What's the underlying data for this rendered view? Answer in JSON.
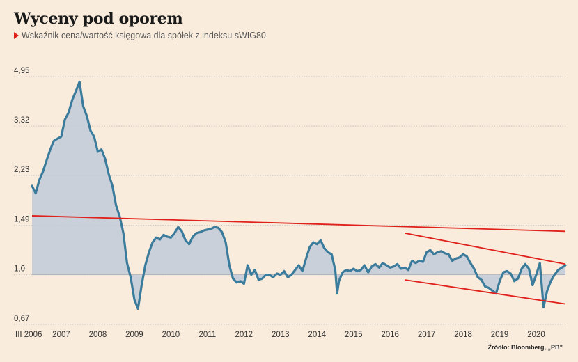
{
  "title": "Wyceny pod oporem",
  "subtitle": "Wskaźnik cena/wartość księgowa dla spółek z indeksu sWIG80",
  "source": "Źródło: Bloomberg, „PB”",
  "colors": {
    "line": "#3b7b9b",
    "area": "#c2cbd8",
    "trend": "#e0201b",
    "marker": "#e0201b",
    "grid": "#b5b5b5",
    "background": "#f9ecdc"
  },
  "chart_data": {
    "type": "line",
    "title": "Wyceny pod oporem",
    "subtitle": "Wskaźnik cena/wartość księgowa dla spółek z indeksu sWIG80",
    "y_scale": "log",
    "y_ticks": [
      "4,95",
      "3,32",
      "2,23",
      "1,49",
      "1,0",
      "0,67"
    ],
    "y_tick_values": [
      4.95,
      3.32,
      2.23,
      1.49,
      1.0,
      0.67
    ],
    "ylim": [
      0.67,
      4.95
    ],
    "xlim": [
      2006.2,
      2020.8
    ],
    "x_ticks": [
      {
        "label": "III 2006",
        "x": 2006.17
      },
      {
        "label": "2007",
        "x": 2007.0
      },
      {
        "label": "2008",
        "x": 2008.0
      },
      {
        "label": "2009",
        "x": 2009.0
      },
      {
        "label": "2010",
        "x": 2010.0
      },
      {
        "label": "2011",
        "x": 2011.0
      },
      {
        "label": "2012",
        "x": 2012.0
      },
      {
        "label": "2013",
        "x": 2013.0
      },
      {
        "label": "2014",
        "x": 2014.0
      },
      {
        "label": "2015",
        "x": 2015.0
      },
      {
        "label": "2016",
        "x": 2016.0
      },
      {
        "label": "2017",
        "x": 2017.0
      },
      {
        "label": "2018",
        "x": 2018.0
      },
      {
        "label": "2019",
        "x": 2019.0
      },
      {
        "label": "2020",
        "x": 2020.0
      }
    ],
    "baseline": 1.0,
    "grid": true,
    "series": [
      {
        "points": [
          [
            2006.2,
            2.05
          ],
          [
            2006.3,
            1.93
          ],
          [
            2006.4,
            2.15
          ],
          [
            2006.5,
            2.3
          ],
          [
            2006.6,
            2.52
          ],
          [
            2006.7,
            2.75
          ],
          [
            2006.8,
            2.95
          ],
          [
            2006.9,
            3.0
          ],
          [
            2007.0,
            3.05
          ],
          [
            2007.1,
            3.5
          ],
          [
            2007.2,
            3.7
          ],
          [
            2007.3,
            4.1
          ],
          [
            2007.4,
            4.4
          ],
          [
            2007.5,
            4.75
          ],
          [
            2007.55,
            4.3
          ],
          [
            2007.6,
            3.9
          ],
          [
            2007.7,
            3.6
          ],
          [
            2007.8,
            3.2
          ],
          [
            2007.9,
            3.05
          ],
          [
            2008.0,
            2.7
          ],
          [
            2008.1,
            2.75
          ],
          [
            2008.2,
            2.55
          ],
          [
            2008.3,
            2.25
          ],
          [
            2008.4,
            2.05
          ],
          [
            2008.5,
            1.75
          ],
          [
            2008.6,
            1.6
          ],
          [
            2008.7,
            1.4
          ],
          [
            2008.8,
            1.1
          ],
          [
            2008.9,
            0.98
          ],
          [
            2009.0,
            0.82
          ],
          [
            2009.1,
            0.76
          ],
          [
            2009.2,
            0.92
          ],
          [
            2009.3,
            1.08
          ],
          [
            2009.4,
            1.2
          ],
          [
            2009.5,
            1.3
          ],
          [
            2009.6,
            1.35
          ],
          [
            2009.7,
            1.33
          ],
          [
            2009.8,
            1.38
          ],
          [
            2009.9,
            1.36
          ],
          [
            2010.0,
            1.35
          ],
          [
            2010.1,
            1.4
          ],
          [
            2010.2,
            1.47
          ],
          [
            2010.3,
            1.42
          ],
          [
            2010.4,
            1.32
          ],
          [
            2010.5,
            1.28
          ],
          [
            2010.6,
            1.36
          ],
          [
            2010.7,
            1.4
          ],
          [
            2010.8,
            1.41
          ],
          [
            2010.9,
            1.43
          ],
          [
            2011.0,
            1.44
          ],
          [
            2011.1,
            1.45
          ],
          [
            2011.2,
            1.47
          ],
          [
            2011.3,
            1.46
          ],
          [
            2011.4,
            1.41
          ],
          [
            2011.5,
            1.3
          ],
          [
            2011.6,
            1.08
          ],
          [
            2011.7,
            0.97
          ],
          [
            2011.8,
            0.94
          ],
          [
            2011.9,
            0.95
          ],
          [
            2012.0,
            0.93
          ],
          [
            2012.1,
            1.08
          ],
          [
            2012.2,
            1.0
          ],
          [
            2012.3,
            1.04
          ],
          [
            2012.4,
            0.96
          ],
          [
            2012.5,
            0.97
          ],
          [
            2012.6,
            1.0
          ],
          [
            2012.7,
            1.0
          ],
          [
            2012.8,
            0.98
          ],
          [
            2012.9,
            1.01
          ],
          [
            2013.0,
            1.0
          ],
          [
            2013.1,
            1.03
          ],
          [
            2013.2,
            0.98
          ],
          [
            2013.3,
            1.0
          ],
          [
            2013.4,
            1.04
          ],
          [
            2013.5,
            1.08
          ],
          [
            2013.6,
            1.03
          ],
          [
            2013.7,
            1.14
          ],
          [
            2013.8,
            1.25
          ],
          [
            2013.9,
            1.3
          ],
          [
            2014.0,
            1.28
          ],
          [
            2014.1,
            1.32
          ],
          [
            2014.2,
            1.24
          ],
          [
            2014.3,
            1.2
          ],
          [
            2014.4,
            1.18
          ],
          [
            2014.5,
            1.04
          ],
          [
            2014.55,
            0.86
          ],
          [
            2014.6,
            0.95
          ],
          [
            2014.7,
            1.02
          ],
          [
            2014.8,
            1.04
          ],
          [
            2014.9,
            1.03
          ],
          [
            2015.0,
            1.05
          ],
          [
            2015.1,
            1.03
          ],
          [
            2015.2,
            1.04
          ],
          [
            2015.3,
            1.08
          ],
          [
            2015.4,
            1.02
          ],
          [
            2015.5,
            1.07
          ],
          [
            2015.6,
            1.09
          ],
          [
            2015.7,
            1.06
          ],
          [
            2015.8,
            1.1
          ],
          [
            2015.9,
            1.08
          ],
          [
            2016.0,
            1.06
          ],
          [
            2016.1,
            1.07
          ],
          [
            2016.2,
            1.09
          ],
          [
            2016.3,
            1.05
          ],
          [
            2016.4,
            1.06
          ],
          [
            2016.5,
            1.04
          ],
          [
            2016.6,
            1.12
          ],
          [
            2016.7,
            1.1
          ],
          [
            2016.8,
            1.12
          ],
          [
            2016.9,
            1.11
          ],
          [
            2017.0,
            1.2
          ],
          [
            2017.1,
            1.22
          ],
          [
            2017.2,
            1.18
          ],
          [
            2017.3,
            1.2
          ],
          [
            2017.4,
            1.21
          ],
          [
            2017.5,
            1.19
          ],
          [
            2017.6,
            1.18
          ],
          [
            2017.7,
            1.12
          ],
          [
            2017.8,
            1.14
          ],
          [
            2017.9,
            1.15
          ],
          [
            2018.0,
            1.18
          ],
          [
            2018.1,
            1.16
          ],
          [
            2018.2,
            1.1
          ],
          [
            2018.3,
            1.05
          ],
          [
            2018.4,
            0.98
          ],
          [
            2018.5,
            0.96
          ],
          [
            2018.6,
            0.91
          ],
          [
            2018.7,
            0.9
          ],
          [
            2018.8,
            0.88
          ],
          [
            2018.9,
            0.86
          ],
          [
            2019.0,
            0.95
          ],
          [
            2019.1,
            1.02
          ],
          [
            2019.2,
            1.03
          ],
          [
            2019.3,
            1.01
          ],
          [
            2019.4,
            0.95
          ],
          [
            2019.5,
            0.97
          ],
          [
            2019.6,
            1.05
          ],
          [
            2019.7,
            1.09
          ],
          [
            2019.8,
            1.05
          ],
          [
            2019.9,
            0.92
          ],
          [
            2020.0,
            1.0
          ],
          [
            2020.1,
            1.1
          ],
          [
            2020.2,
            0.77
          ],
          [
            2020.3,
            0.88
          ],
          [
            2020.4,
            0.95
          ],
          [
            2020.5,
            1.0
          ],
          [
            2020.6,
            1.04
          ],
          [
            2020.7,
            1.06
          ],
          [
            2020.8,
            1.08
          ]
        ]
      }
    ],
    "trend_lines": [
      {
        "from": [
          2006.2,
          1.61
        ],
        "to": [
          2020.8,
          1.42
        ]
      },
      {
        "from": [
          2016.4,
          1.4
        ],
        "to": [
          2020.8,
          1.09
        ]
      },
      {
        "from": [
          2016.4,
          0.96
        ],
        "to": [
          2020.8,
          0.79
        ]
      }
    ]
  }
}
